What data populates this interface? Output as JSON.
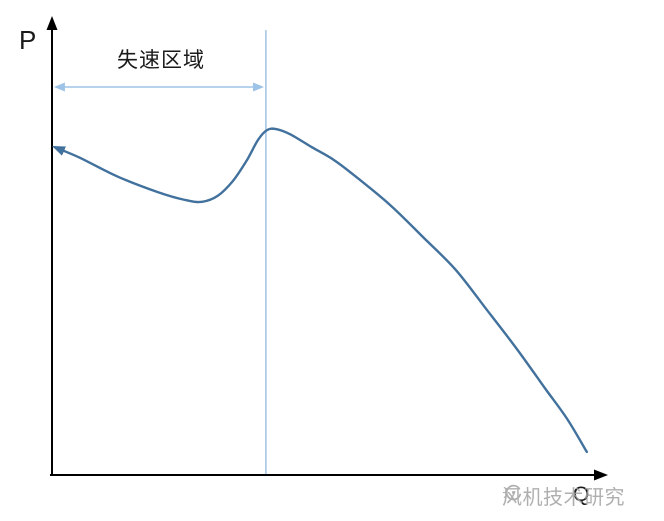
{
  "labels": {
    "y_axis": "P",
    "x_axis": "Q",
    "stall_region": "失速区域"
  },
  "watermark": {
    "text": "风机技术研究",
    "icon": "fan-logo-icon"
  },
  "colors": {
    "axis": "#000000",
    "curve": "#41719C",
    "guide": "#9DC3E6",
    "watermark": "#a2a2a2"
  },
  "chart_data": {
    "type": "line",
    "title": "",
    "xlabel": "Q",
    "ylabel": "P",
    "axis_numeric_ticks": false,
    "grid": false,
    "legend": false,
    "description": "Fan pressure-flow (P-Q) performance curve; stall region marked between the P axis and a vertical stall-boundary guide line at the curve's local peak; curve has an arrowhead at its low-flow end pointing toward the P axis.",
    "annotations": [
      {
        "kind": "double-headed-arrow-span",
        "text": "失速区域",
        "y_frac": 0.838,
        "from_x_frac": 0.007,
        "to_x_frac": 0.375
      },
      {
        "kind": "vertical-guide-line",
        "x_frac": 0.382,
        "y_frac_bottom": 0.002,
        "y_frac_top": 0.961
      }
    ],
    "series": [
      {
        "name": "P-Q curve",
        "points_frac": [
          [
            0.005,
            0.708
          ],
          [
            0.05,
            0.685
          ],
          [
            0.118,
            0.644
          ],
          [
            0.189,
            0.611
          ],
          [
            0.238,
            0.594
          ],
          [
            0.268,
            0.59
          ],
          [
            0.296,
            0.603
          ],
          [
            0.323,
            0.635
          ],
          [
            0.348,
            0.68
          ],
          [
            0.368,
            0.724
          ],
          [
            0.384,
            0.745
          ],
          [
            0.4,
            0.747
          ],
          [
            0.425,
            0.736
          ],
          [
            0.464,
            0.708
          ],
          [
            0.504,
            0.68
          ],
          [
            0.546,
            0.641
          ],
          [
            0.604,
            0.583
          ],
          [
            0.664,
            0.512
          ],
          [
            0.721,
            0.443
          ],
          [
            0.777,
            0.356
          ],
          [
            0.829,
            0.274
          ],
          [
            0.88,
            0.188
          ],
          [
            0.92,
            0.121
          ],
          [
            0.955,
            0.05
          ]
        ],
        "shape_notes": "dips to local minimum near x_frac 0.27, rises to local peak at x_frac 0.39 (stall boundary), then falls monotonically"
      }
    ]
  }
}
